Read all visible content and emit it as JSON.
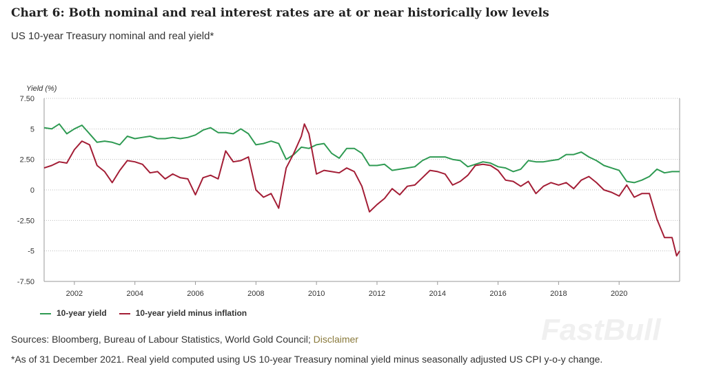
{
  "title": "Chart 6: Both nominal and real interest rates are at or near historically low levels",
  "subtitle": "US 10-year Treasury nominal and real yield*",
  "sources_label": "Sources: Bloomberg, Bureau of Labour Statistics, World Gold Council;",
  "disclaimer_link": "Disclaimer",
  "footnote": "*As of 31 December 2021. Real yield computed using US 10-year Treasury nominal yield minus seasonally adjusted US CPI y-o-y change.",
  "watermark": "FastBull",
  "chart_data": {
    "type": "line",
    "ylabel": "Yield (%)",
    "ylim": [
      -7.5,
      7.5
    ],
    "yticks": [
      7.5,
      5,
      2.5,
      0,
      -2.5,
      -5,
      -7.5
    ],
    "ytick_labels": [
      "7.50",
      "5",
      "2.50",
      "0",
      "-2.50",
      "-5",
      "-7.50"
    ],
    "xlim": [
      2001,
      2022
    ],
    "xticks": [
      2002,
      2004,
      2006,
      2008,
      2010,
      2012,
      2014,
      2016,
      2018,
      2020
    ],
    "grid": "horizontal dotted",
    "legend": "bottom-left",
    "series": [
      {
        "name": "10-year yield",
        "color": "#2e9a52",
        "x": [
          2001,
          2001.25,
          2001.5,
          2001.75,
          2002,
          2002.25,
          2002.5,
          2002.75,
          2003,
          2003.25,
          2003.5,
          2003.75,
          2004,
          2004.25,
          2004.5,
          2004.75,
          2005,
          2005.25,
          2005.5,
          2005.75,
          2006,
          2006.25,
          2006.5,
          2006.75,
          2007,
          2007.25,
          2007.5,
          2007.75,
          2008,
          2008.25,
          2008.5,
          2008.75,
          2009,
          2009.25,
          2009.5,
          2009.75,
          2010,
          2010.25,
          2010.5,
          2010.75,
          2011,
          2011.25,
          2011.5,
          2011.75,
          2012,
          2012.25,
          2012.5,
          2012.75,
          2013,
          2013.25,
          2013.5,
          2013.75,
          2014,
          2014.25,
          2014.5,
          2014.75,
          2015,
          2015.25,
          2015.5,
          2015.75,
          2016,
          2016.25,
          2016.5,
          2016.75,
          2017,
          2017.25,
          2017.5,
          2017.75,
          2018,
          2018.25,
          2018.5,
          2018.75,
          2019,
          2019.25,
          2019.5,
          2019.75,
          2020,
          2020.25,
          2020.5,
          2020.75,
          2021,
          2021.25,
          2021.5,
          2021.75,
          2022
        ],
        "values": [
          5.1,
          5.0,
          5.4,
          4.6,
          5.0,
          5.3,
          4.6,
          3.9,
          4.0,
          3.9,
          3.7,
          4.4,
          4.2,
          4.3,
          4.4,
          4.2,
          4.2,
          4.3,
          4.2,
          4.3,
          4.5,
          4.9,
          5.1,
          4.7,
          4.7,
          4.6,
          5.0,
          4.6,
          3.7,
          3.8,
          4.0,
          3.8,
          2.5,
          2.9,
          3.5,
          3.4,
          3.7,
          3.8,
          3.0,
          2.6,
          3.4,
          3.4,
          3.0,
          2.0,
          2.0,
          2.1,
          1.6,
          1.7,
          1.8,
          1.9,
          2.4,
          2.7,
          2.7,
          2.7,
          2.5,
          2.4,
          1.9,
          2.1,
          2.3,
          2.2,
          1.9,
          1.8,
          1.5,
          1.7,
          2.4,
          2.3,
          2.3,
          2.4,
          2.5,
          2.9,
          2.9,
          3.1,
          2.7,
          2.4,
          2.0,
          1.8,
          1.6,
          0.7,
          0.6,
          0.8,
          1.1,
          1.7,
          1.4,
          1.5,
          1.5
        ]
      },
      {
        "name": "10-year yield minus inflation",
        "color": "#a31d35",
        "x": [
          2001,
          2001.25,
          2001.5,
          2001.75,
          2002,
          2002.25,
          2002.5,
          2002.75,
          2003,
          2003.25,
          2003.5,
          2003.75,
          2004,
          2004.25,
          2004.5,
          2004.75,
          2005,
          2005.25,
          2005.5,
          2005.75,
          2006,
          2006.25,
          2006.5,
          2006.75,
          2007,
          2007.25,
          2007.5,
          2007.75,
          2008,
          2008.25,
          2008.5,
          2008.75,
          2009,
          2009.25,
          2009.5,
          2009.6,
          2009.75,
          2010,
          2010.25,
          2010.5,
          2010.75,
          2011,
          2011.25,
          2011.5,
          2011.75,
          2012,
          2012.25,
          2012.5,
          2012.75,
          2013,
          2013.25,
          2013.5,
          2013.75,
          2014,
          2014.25,
          2014.5,
          2014.75,
          2015,
          2015.25,
          2015.5,
          2015.75,
          2016,
          2016.25,
          2016.5,
          2016.75,
          2017,
          2017.25,
          2017.5,
          2017.75,
          2018,
          2018.25,
          2018.5,
          2018.75,
          2019,
          2019.25,
          2019.5,
          2019.75,
          2020,
          2020.25,
          2020.5,
          2020.75,
          2021,
          2021.25,
          2021.5,
          2021.75,
          2021.9,
          2022
        ],
        "values": [
          1.8,
          2.0,
          2.3,
          2.2,
          3.3,
          4.0,
          3.7,
          2.0,
          1.5,
          0.6,
          1.6,
          2.4,
          2.3,
          2.1,
          1.4,
          1.5,
          0.9,
          1.3,
          1.0,
          0.9,
          -0.4,
          1.0,
          1.2,
          0.9,
          3.2,
          2.3,
          2.4,
          2.7,
          0.0,
          -0.6,
          -0.3,
          -1.5,
          1.8,
          3.0,
          4.4,
          5.4,
          4.6,
          1.3,
          1.6,
          1.5,
          1.4,
          1.8,
          1.5,
          0.3,
          -1.8,
          -1.2,
          -0.7,
          0.1,
          -0.4,
          0.3,
          0.4,
          1.0,
          1.6,
          1.5,
          1.3,
          0.4,
          0.7,
          1.2,
          2.0,
          2.1,
          2.0,
          1.6,
          0.8,
          0.7,
          0.3,
          0.7,
          -0.3,
          0.3,
          0.6,
          0.4,
          0.6,
          0.1,
          0.8,
          1.1,
          0.6,
          0.0,
          -0.2,
          -0.5,
          0.4,
          -0.6,
          -0.3,
          -0.3,
          -2.4,
          -3.9,
          -3.9,
          -5.4,
          -5.0
        ]
      }
    ]
  }
}
